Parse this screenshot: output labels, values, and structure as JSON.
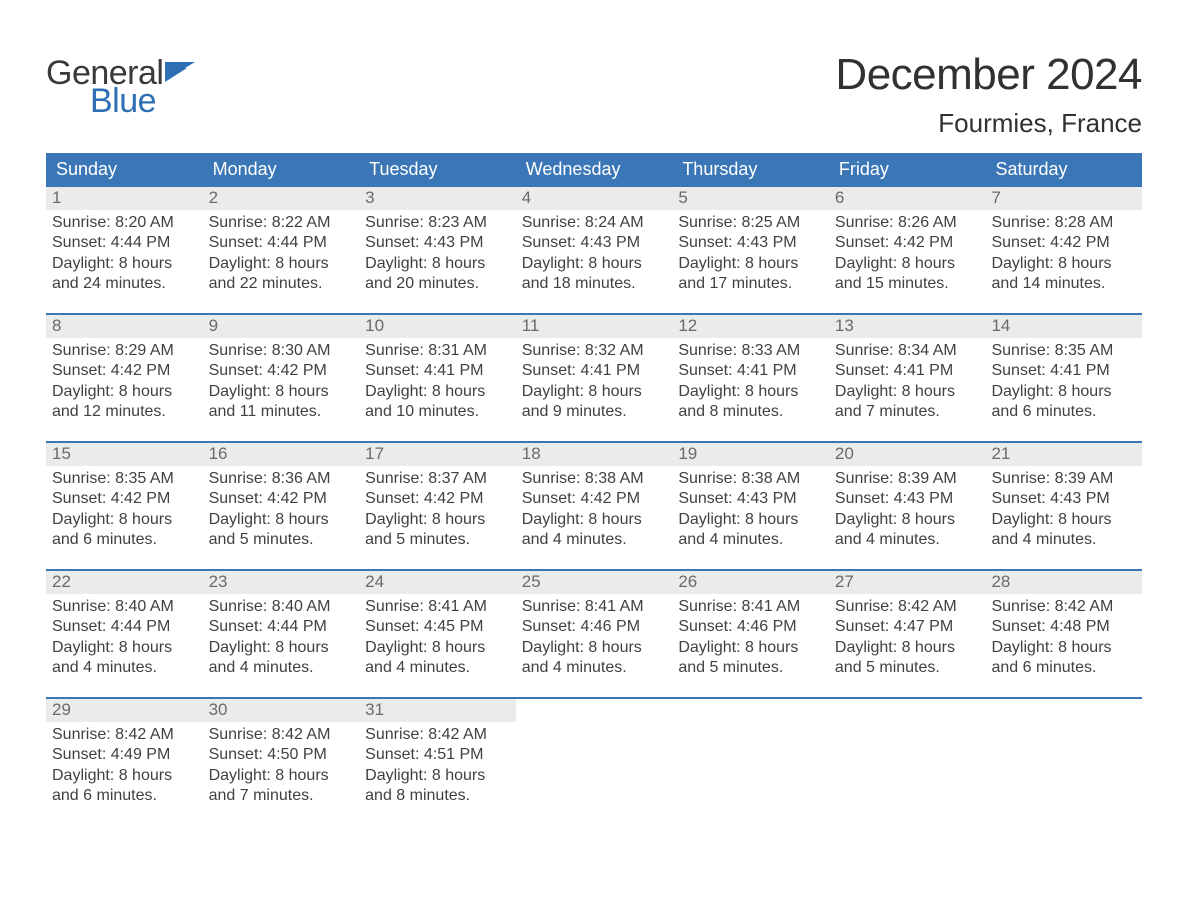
{
  "logo": {
    "line1": "General",
    "line2": "Blue",
    "brand_color": "#2d6eb5",
    "text_color": "#3a3a3a"
  },
  "title": "December 2024",
  "location": "Fourmies, France",
  "colors": {
    "header_bg": "#3b76b6",
    "header_text": "#ffffff",
    "daynum_bg": "#ebebeb",
    "daynum_text": "#6a6a6a",
    "body_text": "#414141",
    "title_text": "#313131",
    "week_border": "#3b76b6"
  },
  "fonts": {
    "title_size": 44,
    "location_size": 26,
    "weekday_size": 18,
    "daynum_size": 17,
    "body_size": 16
  },
  "weekdays": [
    "Sunday",
    "Monday",
    "Tuesday",
    "Wednesday",
    "Thursday",
    "Friday",
    "Saturday"
  ],
  "weeks": [
    [
      {
        "n": "1",
        "sunrise": "Sunrise: 8:20 AM",
        "sunset": "Sunset: 4:44 PM",
        "d1": "Daylight: 8 hours",
        "d2": "and 24 minutes."
      },
      {
        "n": "2",
        "sunrise": "Sunrise: 8:22 AM",
        "sunset": "Sunset: 4:44 PM",
        "d1": "Daylight: 8 hours",
        "d2": "and 22 minutes."
      },
      {
        "n": "3",
        "sunrise": "Sunrise: 8:23 AM",
        "sunset": "Sunset: 4:43 PM",
        "d1": "Daylight: 8 hours",
        "d2": "and 20 minutes."
      },
      {
        "n": "4",
        "sunrise": "Sunrise: 8:24 AM",
        "sunset": "Sunset: 4:43 PM",
        "d1": "Daylight: 8 hours",
        "d2": "and 18 minutes."
      },
      {
        "n": "5",
        "sunrise": "Sunrise: 8:25 AM",
        "sunset": "Sunset: 4:43 PM",
        "d1": "Daylight: 8 hours",
        "d2": "and 17 minutes."
      },
      {
        "n": "6",
        "sunrise": "Sunrise: 8:26 AM",
        "sunset": "Sunset: 4:42 PM",
        "d1": "Daylight: 8 hours",
        "d2": "and 15 minutes."
      },
      {
        "n": "7",
        "sunrise": "Sunrise: 8:28 AM",
        "sunset": "Sunset: 4:42 PM",
        "d1": "Daylight: 8 hours",
        "d2": "and 14 minutes."
      }
    ],
    [
      {
        "n": "8",
        "sunrise": "Sunrise: 8:29 AM",
        "sunset": "Sunset: 4:42 PM",
        "d1": "Daylight: 8 hours",
        "d2": "and 12 minutes."
      },
      {
        "n": "9",
        "sunrise": "Sunrise: 8:30 AM",
        "sunset": "Sunset: 4:42 PM",
        "d1": "Daylight: 8 hours",
        "d2": "and 11 minutes."
      },
      {
        "n": "10",
        "sunrise": "Sunrise: 8:31 AM",
        "sunset": "Sunset: 4:41 PM",
        "d1": "Daylight: 8 hours",
        "d2": "and 10 minutes."
      },
      {
        "n": "11",
        "sunrise": "Sunrise: 8:32 AM",
        "sunset": "Sunset: 4:41 PM",
        "d1": "Daylight: 8 hours",
        "d2": "and 9 minutes."
      },
      {
        "n": "12",
        "sunrise": "Sunrise: 8:33 AM",
        "sunset": "Sunset: 4:41 PM",
        "d1": "Daylight: 8 hours",
        "d2": "and 8 minutes."
      },
      {
        "n": "13",
        "sunrise": "Sunrise: 8:34 AM",
        "sunset": "Sunset: 4:41 PM",
        "d1": "Daylight: 8 hours",
        "d2": "and 7 minutes."
      },
      {
        "n": "14",
        "sunrise": "Sunrise: 8:35 AM",
        "sunset": "Sunset: 4:41 PM",
        "d1": "Daylight: 8 hours",
        "d2": "and 6 minutes."
      }
    ],
    [
      {
        "n": "15",
        "sunrise": "Sunrise: 8:35 AM",
        "sunset": "Sunset: 4:42 PM",
        "d1": "Daylight: 8 hours",
        "d2": "and 6 minutes."
      },
      {
        "n": "16",
        "sunrise": "Sunrise: 8:36 AM",
        "sunset": "Sunset: 4:42 PM",
        "d1": "Daylight: 8 hours",
        "d2": "and 5 minutes."
      },
      {
        "n": "17",
        "sunrise": "Sunrise: 8:37 AM",
        "sunset": "Sunset: 4:42 PM",
        "d1": "Daylight: 8 hours",
        "d2": "and 5 minutes."
      },
      {
        "n": "18",
        "sunrise": "Sunrise: 8:38 AM",
        "sunset": "Sunset: 4:42 PM",
        "d1": "Daylight: 8 hours",
        "d2": "and 4 minutes."
      },
      {
        "n": "19",
        "sunrise": "Sunrise: 8:38 AM",
        "sunset": "Sunset: 4:43 PM",
        "d1": "Daylight: 8 hours",
        "d2": "and 4 minutes."
      },
      {
        "n": "20",
        "sunrise": "Sunrise: 8:39 AM",
        "sunset": "Sunset: 4:43 PM",
        "d1": "Daylight: 8 hours",
        "d2": "and 4 minutes."
      },
      {
        "n": "21",
        "sunrise": "Sunrise: 8:39 AM",
        "sunset": "Sunset: 4:43 PM",
        "d1": "Daylight: 8 hours",
        "d2": "and 4 minutes."
      }
    ],
    [
      {
        "n": "22",
        "sunrise": "Sunrise: 8:40 AM",
        "sunset": "Sunset: 4:44 PM",
        "d1": "Daylight: 8 hours",
        "d2": "and 4 minutes."
      },
      {
        "n": "23",
        "sunrise": "Sunrise: 8:40 AM",
        "sunset": "Sunset: 4:44 PM",
        "d1": "Daylight: 8 hours",
        "d2": "and 4 minutes."
      },
      {
        "n": "24",
        "sunrise": "Sunrise: 8:41 AM",
        "sunset": "Sunset: 4:45 PM",
        "d1": "Daylight: 8 hours",
        "d2": "and 4 minutes."
      },
      {
        "n": "25",
        "sunrise": "Sunrise: 8:41 AM",
        "sunset": "Sunset: 4:46 PM",
        "d1": "Daylight: 8 hours",
        "d2": "and 4 minutes."
      },
      {
        "n": "26",
        "sunrise": "Sunrise: 8:41 AM",
        "sunset": "Sunset: 4:46 PM",
        "d1": "Daylight: 8 hours",
        "d2": "and 5 minutes."
      },
      {
        "n": "27",
        "sunrise": "Sunrise: 8:42 AM",
        "sunset": "Sunset: 4:47 PM",
        "d1": "Daylight: 8 hours",
        "d2": "and 5 minutes."
      },
      {
        "n": "28",
        "sunrise": "Sunrise: 8:42 AM",
        "sunset": "Sunset: 4:48 PM",
        "d1": "Daylight: 8 hours",
        "d2": "and 6 minutes."
      }
    ],
    [
      {
        "n": "29",
        "sunrise": "Sunrise: 8:42 AM",
        "sunset": "Sunset: 4:49 PM",
        "d1": "Daylight: 8 hours",
        "d2": "and 6 minutes."
      },
      {
        "n": "30",
        "sunrise": "Sunrise: 8:42 AM",
        "sunset": "Sunset: 4:50 PM",
        "d1": "Daylight: 8 hours",
        "d2": "and 7 minutes."
      },
      {
        "n": "31",
        "sunrise": "Sunrise: 8:42 AM",
        "sunset": "Sunset: 4:51 PM",
        "d1": "Daylight: 8 hours",
        "d2": "and 8 minutes."
      },
      {
        "empty": true
      },
      {
        "empty": true
      },
      {
        "empty": true
      },
      {
        "empty": true
      }
    ]
  ]
}
